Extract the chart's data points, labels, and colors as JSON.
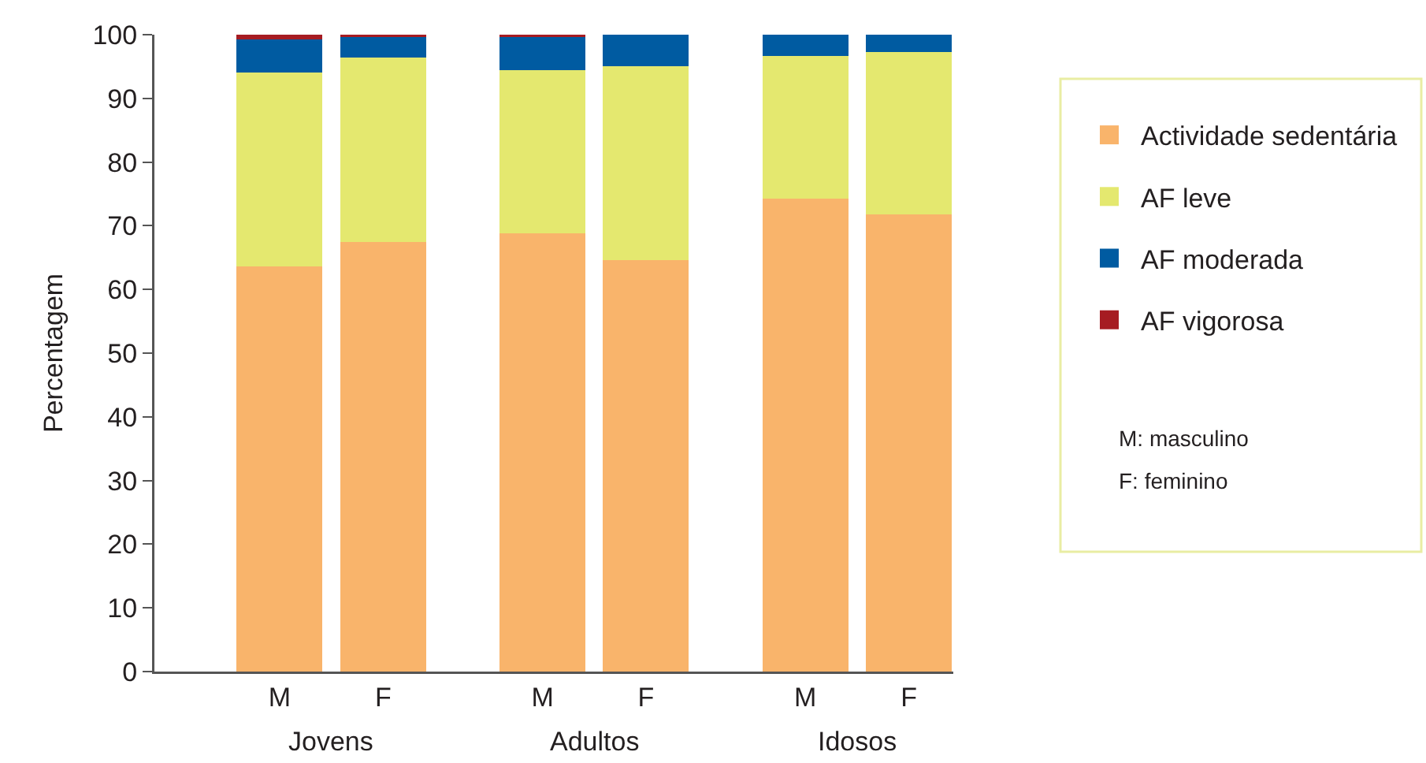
{
  "chart_data": {
    "type": "bar",
    "stacked": true,
    "ylabel": "Percentagem",
    "categories": [
      "M",
      "F",
      "M",
      "F",
      "M",
      "F"
    ],
    "series": [
      {
        "name": "Actividade sedentária",
        "color": "#f9b46b",
        "values": [
          63.6,
          67.4,
          68.8,
          64.6,
          74.3,
          71.8
        ]
      },
      {
        "name": "AF leve",
        "color": "#e4e86f",
        "values": [
          30.5,
          29.0,
          25.6,
          30.5,
          22.3,
          25.5
        ]
      },
      {
        "name": "AF moderada",
        "color": "#005ba1",
        "values": [
          5.1,
          3.2,
          5.2,
          4.9,
          3.4,
          2.7
        ]
      },
      {
        "name": "AF vigorosa",
        "color": "#a61c22",
        "values": [
          0.8,
          0.4,
          0.4,
          0,
          0,
          0
        ]
      }
    ],
    "ylim": [
      0,
      100
    ],
    "yticks": [
      0,
      10,
      20,
      30,
      40,
      50,
      60,
      70,
      80,
      90,
      100
    ],
    "legend": "right",
    "annotations": [
      "Jovens",
      "Adultos",
      "Idosos",
      "M: masculino",
      "F: feminino"
    ]
  }
}
